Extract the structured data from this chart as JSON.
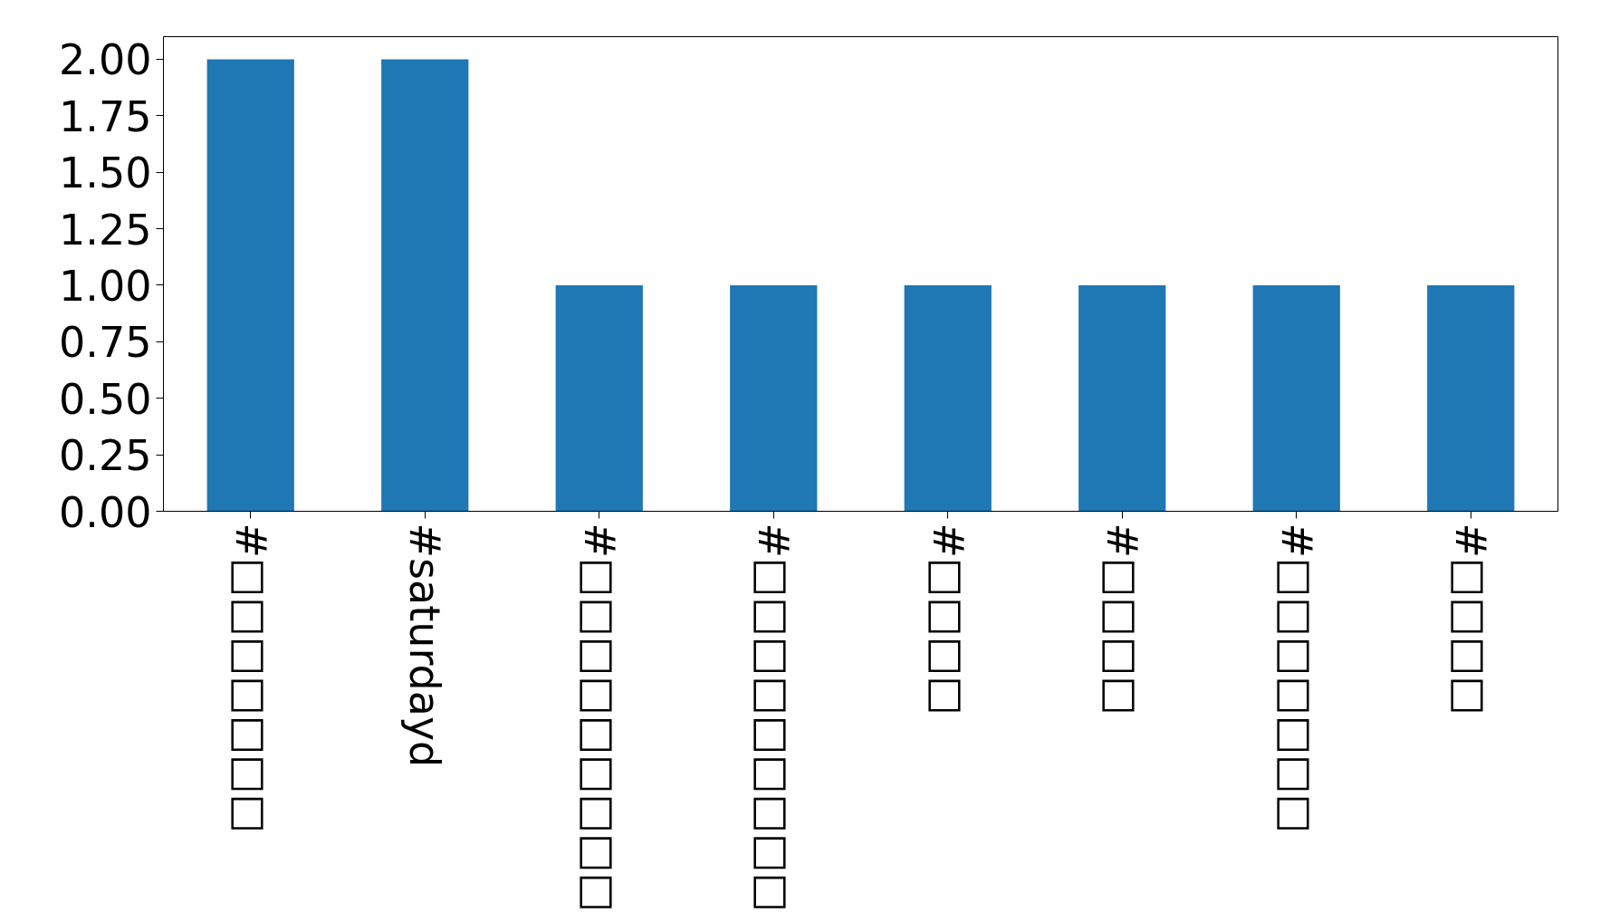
{
  "chart_data": {
    "type": "bar",
    "categories": [
      "#□□□□□□□",
      "#saturdayd",
      "#□□□□□□□□□",
      "#□□□□□□□□□",
      "#□□□□",
      "#□□□□",
      "#□□□□□□□",
      "#□□□□"
    ],
    "values": [
      2,
      2,
      1,
      1,
      1,
      1,
      1,
      1
    ],
    "color": "#1f77b4",
    "ylim": [
      0,
      2.1
    ],
    "yticks": [
      {
        "value": 0,
        "label": "0.00"
      },
      {
        "value": 0.25,
        "label": "0.25"
      },
      {
        "value": 0.5,
        "label": "0.50"
      },
      {
        "value": 0.75,
        "label": "0.75"
      },
      {
        "value": 1,
        "label": "1.00"
      },
      {
        "value": 1.25,
        "label": "1.25"
      },
      {
        "value": 1.5,
        "label": "1.50"
      },
      {
        "value": 1.75,
        "label": "1.75"
      },
      {
        "value": 2,
        "label": "2.00"
      }
    ],
    "grid": false
  }
}
